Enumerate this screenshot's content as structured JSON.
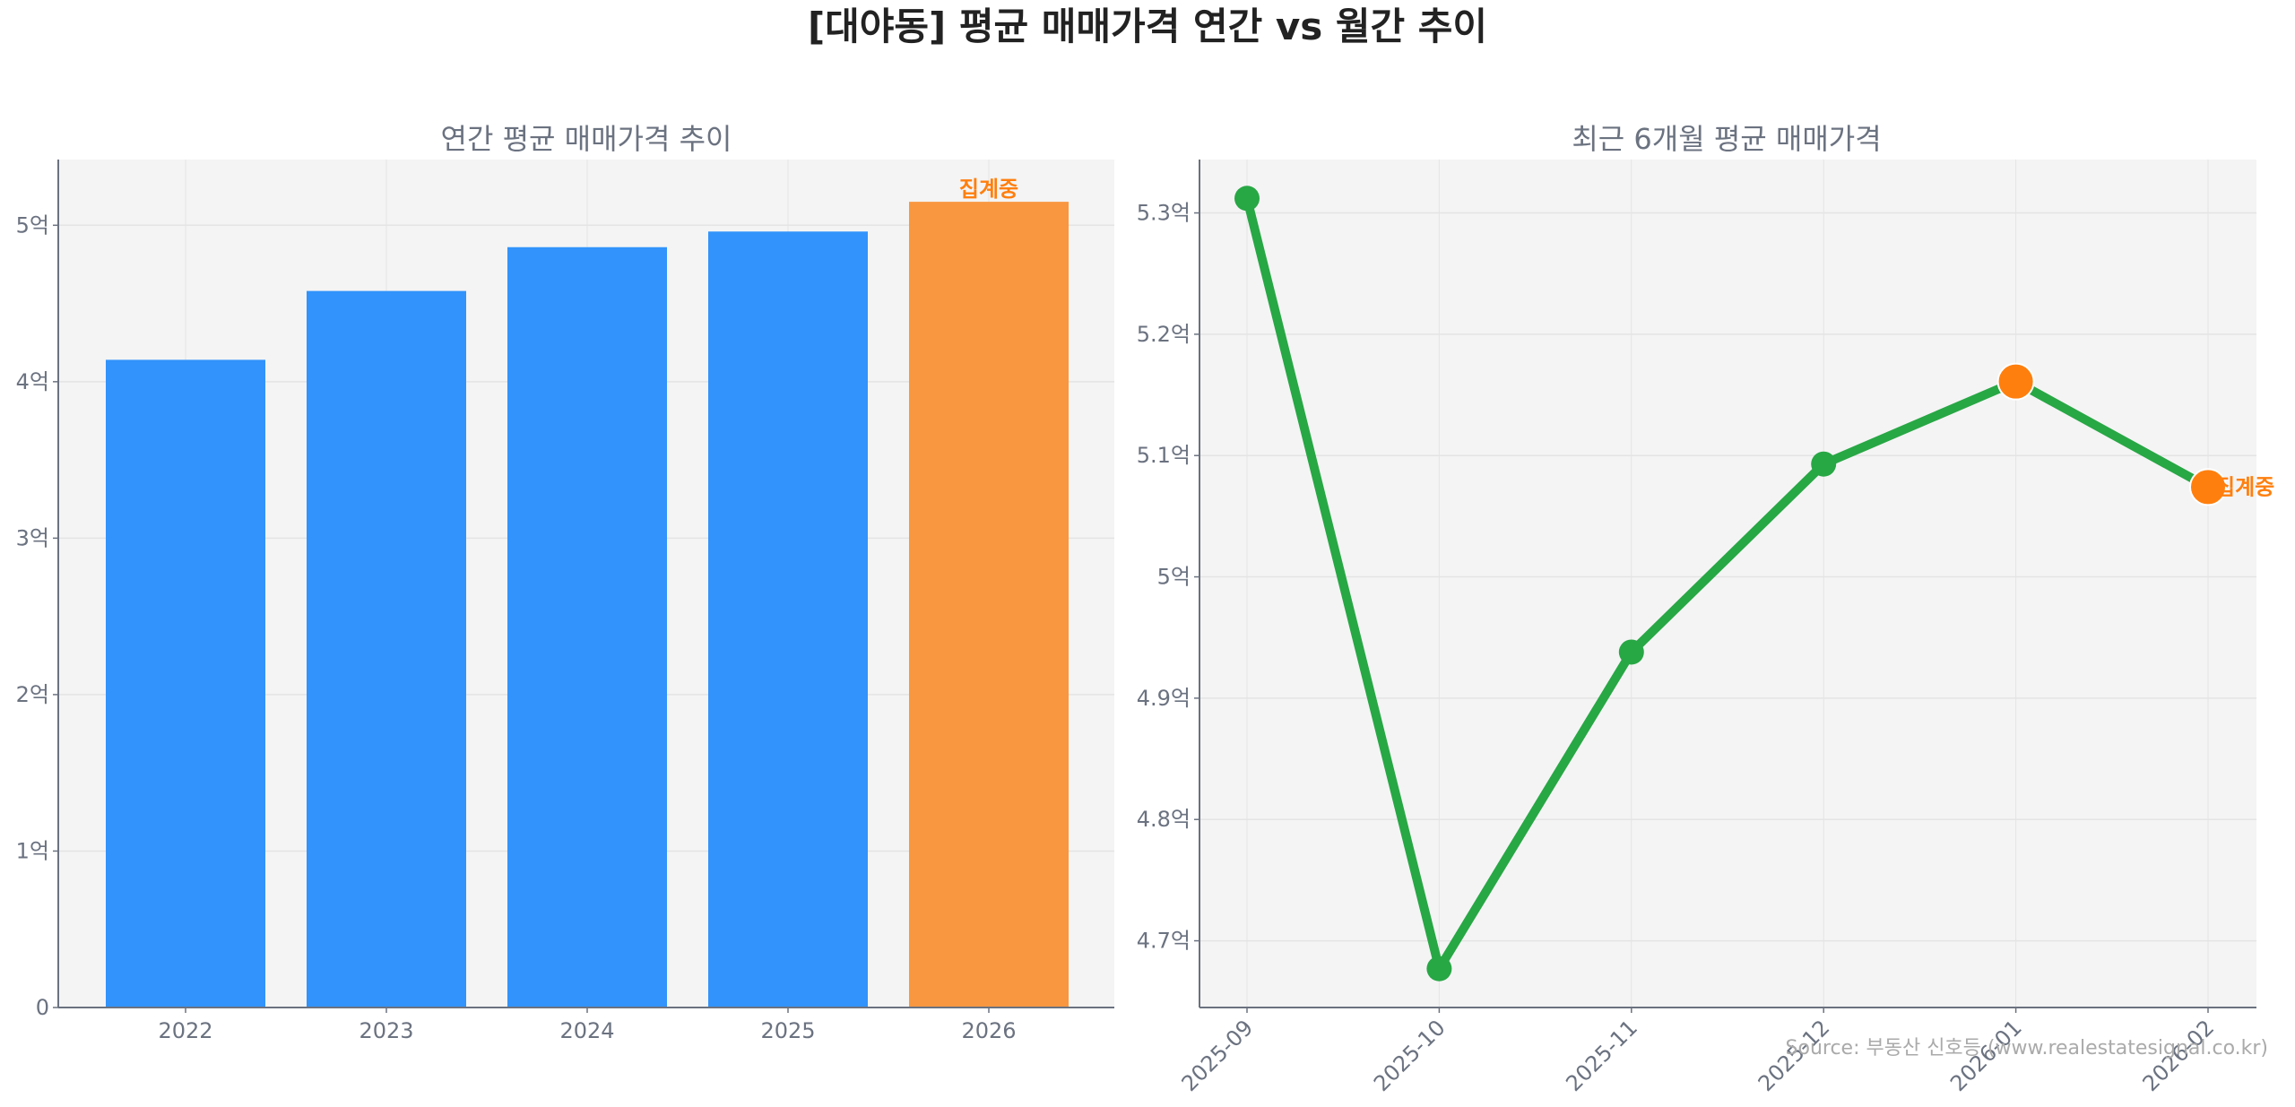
{
  "title": "[대야동] 평균 매매가격 연간 vs 월간 추이",
  "source": "Source: 부동산 신호등 (www.realestatesignal.co.kr)",
  "colors": {
    "bar": "#3193fb",
    "bar_partial": "#f99740",
    "line": "#28a745",
    "partial_marker": "#ff7f0e",
    "plot_bg": "#f4f4f4"
  },
  "chart_data": [
    {
      "type": "bar",
      "title": "연간 평균 매매가격 추이",
      "categories": [
        "2022",
        "2023",
        "2024",
        "2025",
        "2026"
      ],
      "values": [
        4.14,
        4.58,
        4.86,
        4.96,
        5.15
      ],
      "partial": [
        false,
        false,
        false,
        false,
        true
      ],
      "annotation": "집계중",
      "unit": "억",
      "ylim": [
        0,
        5.42
      ],
      "yticks": [
        0,
        1,
        2,
        3,
        4,
        5
      ],
      "ytick_labels": [
        "0",
        "1억",
        "2억",
        "3억",
        "4억",
        "5억"
      ],
      "grid": true
    },
    {
      "type": "line",
      "title": "최근 6개월 평균 매매가격",
      "categories": [
        "2025-09",
        "2025-10",
        "2025-11",
        "2025-12",
        "2026-01",
        "2026-02"
      ],
      "values": [
        5.312,
        4.677,
        4.938,
        5.093,
        5.161,
        5.074
      ],
      "partial": [
        false,
        false,
        false,
        false,
        true,
        true
      ],
      "annotation": "집계중",
      "unit": "억",
      "ylim": [
        4.645,
        5.344
      ],
      "yticks": [
        4.7,
        4.8,
        4.9,
        5.0,
        5.1,
        5.2,
        5.3
      ],
      "ytick_labels": [
        "4.7억",
        "4.8억",
        "4.9억",
        "5억",
        "5.1억",
        "5.2억",
        "5.3억"
      ],
      "grid": true
    }
  ]
}
